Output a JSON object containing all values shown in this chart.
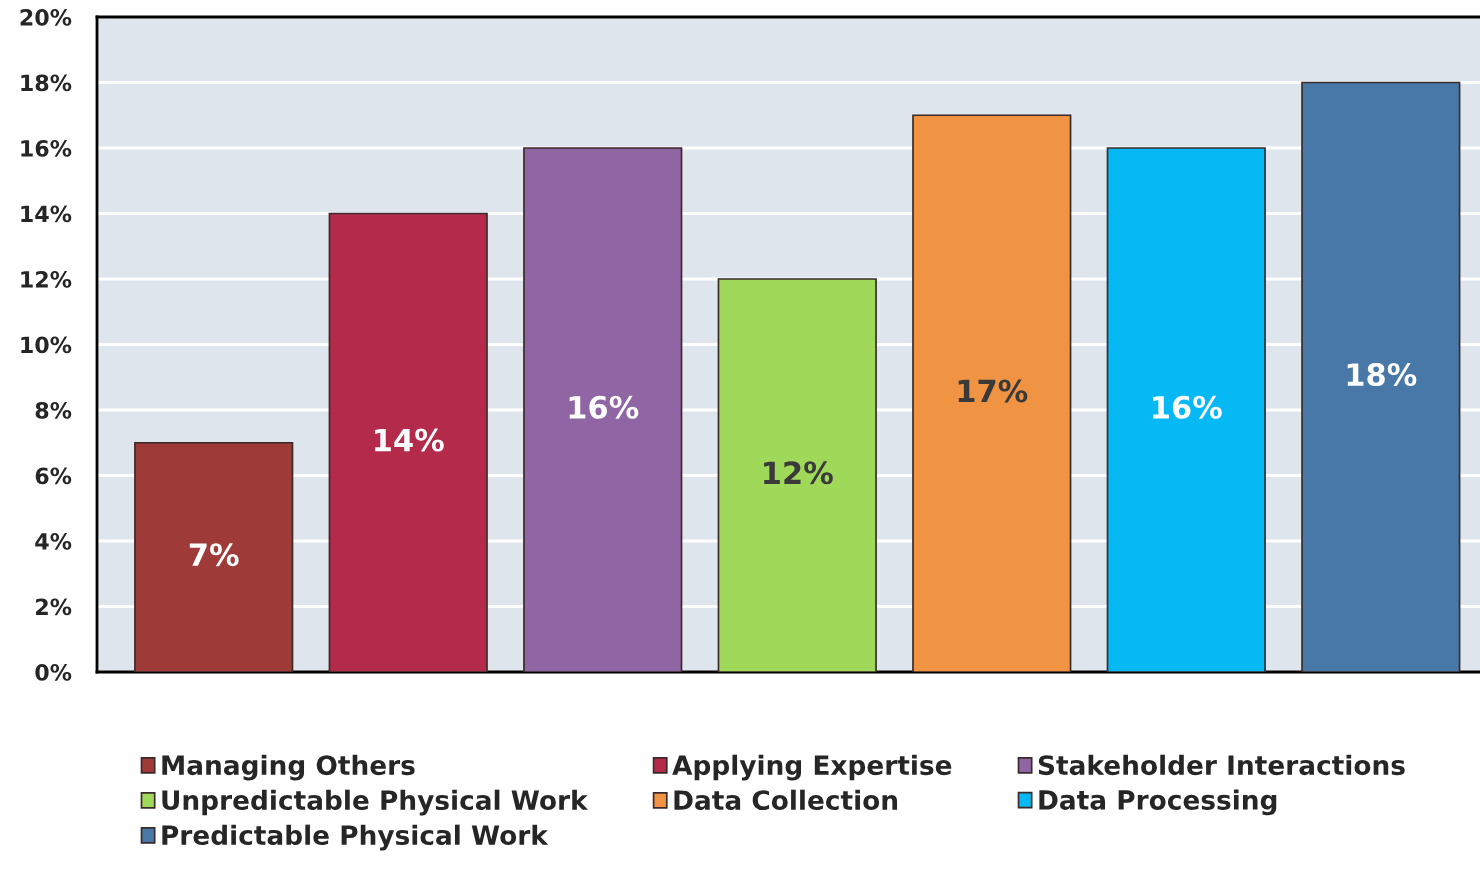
{
  "chart_data": {
    "type": "bar",
    "categories": [
      null
    ],
    "series": [
      {
        "name": "Managing Others",
        "color": "#9e3b38",
        "values": [
          7
        ],
        "value_labels": [
          "7%"
        ]
      },
      {
        "name": "Applying Expertise",
        "color": "#b32a4b",
        "values": [
          14
        ],
        "value_labels": [
          "14%"
        ]
      },
      {
        "name": "Stakeholder Interactions",
        "color": "#9065a3",
        "values": [
          16
        ],
        "value_labels": [
          "16%"
        ]
      },
      {
        "name": "Unpredictable Physical Work",
        "color": "#a0d95a",
        "values": [
          12
        ],
        "value_labels": [
          "12%"
        ]
      },
      {
        "name": "Data Collection",
        "color": "#f09444",
        "values": [
          17
        ],
        "value_labels": [
          "17%"
        ]
      },
      {
        "name": "Data Processing",
        "color": "#06b9f5",
        "values": [
          16
        ],
        "value_labels": [
          "16%"
        ]
      },
      {
        "name": "Predictable Physical Work",
        "color": "#4878a8",
        "values": [
          18
        ],
        "value_labels": [
          "18%"
        ]
      }
    ],
    "ylim": [
      0,
      20
    ],
    "yticks": [
      {
        "value": 0,
        "label": "0%"
      },
      {
        "value": 2,
        "label": "2%"
      },
      {
        "value": 4,
        "label": "4%"
      },
      {
        "value": 6,
        "label": "6%"
      },
      {
        "value": 8,
        "label": "8%"
      },
      {
        "value": 10,
        "label": "10%"
      },
      {
        "value": 12,
        "label": "12%"
      },
      {
        "value": 14,
        "label": "14%"
      },
      {
        "value": 16,
        "label": "16%"
      },
      {
        "value": 18,
        "label": "18%"
      },
      {
        "value": 20,
        "label": "20%"
      }
    ],
    "grid": "y",
    "legend": "bottom"
  }
}
